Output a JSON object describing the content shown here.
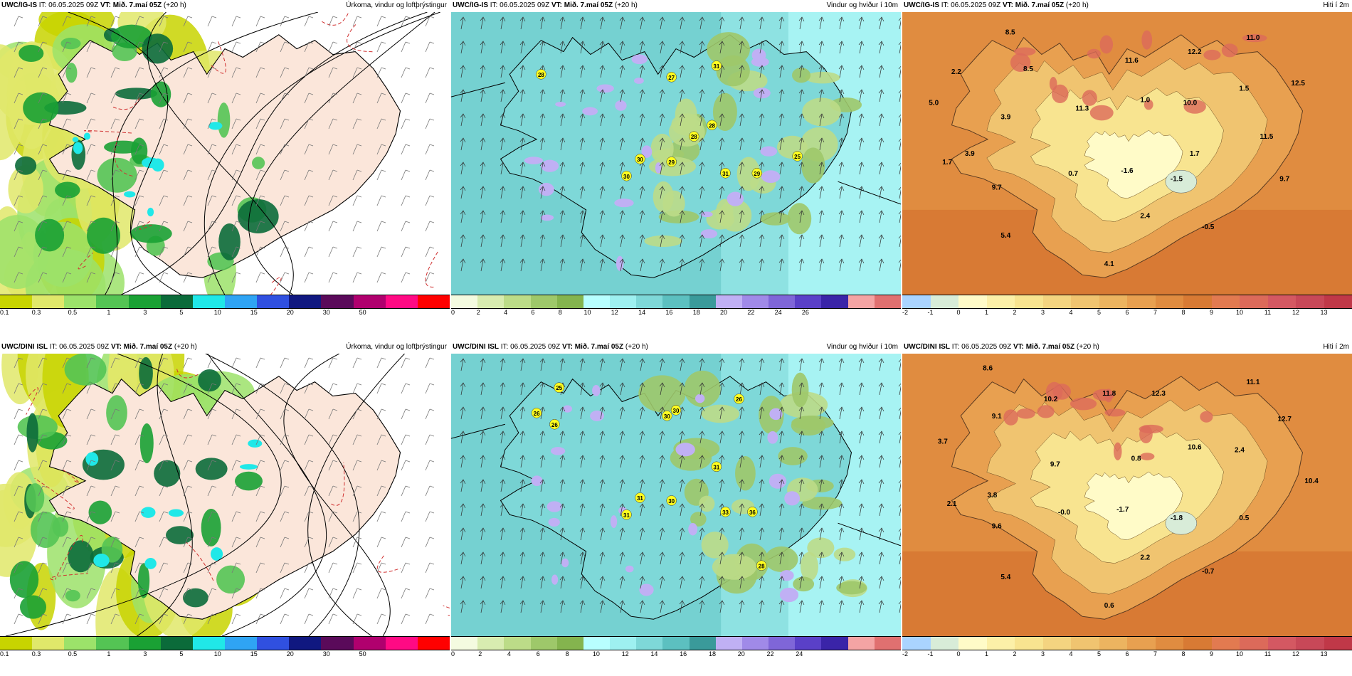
{
  "panels": [
    {
      "id": "r1c1",
      "model": "UWC/IG-IS",
      "it": "IT: 06.05.2025 09Z",
      "vt_label": "VT:",
      "vt": "Mið. 7.maí 05Z",
      "lead": "(+20 h)",
      "variable": "Úrkoma, vindur og loftþrýstingur",
      "kind": "precip",
      "scale_colors": [
        "#c8d400",
        "#e0e86a",
        "#9ce26a",
        "#54c454",
        "#1aa134",
        "#0b6b3a",
        "#20e8e8",
        "#2fa4f4",
        "#3050e0",
        "#101880",
        "#5a0a5a",
        "#b0006e",
        "#ff0a84",
        "#ff0000"
      ],
      "scale_labels": [
        "0.1",
        "0.3",
        "0.5",
        "1",
        "3",
        "5",
        "10",
        "15",
        "20",
        "30",
        "50"
      ],
      "values": []
    },
    {
      "id": "r1c2",
      "model": "UWC/IG-IS",
      "it": "IT: 06.05.2025 09Z",
      "vt_label": "VT:",
      "vt": "Mið. 7.maí 05Z",
      "lead": "(+20 h)",
      "variable": "Vindur og hviður í 10m",
      "kind": "wind",
      "scale_colors": [
        "#f4fbe0",
        "#d8ecb0",
        "#bcdc88",
        "#9ec86a",
        "#84b44e",
        "#b8ffff",
        "#9ef0f0",
        "#7ed8d8",
        "#5cc0c0",
        "#3a9a9a",
        "#c0b0f4",
        "#a08ae8",
        "#7f66d8",
        "#5a40c8",
        "#3a24a8",
        "#f4a4a4",
        "#e07070"
      ],
      "scale_labels": [
        "0",
        "2",
        "4",
        "6",
        "8",
        "10",
        "12",
        "14",
        "16",
        "18",
        "20",
        "22",
        "24",
        "26"
      ],
      "values": [
        "28",
        "27",
        "31",
        "28",
        "28",
        "30",
        "29",
        "31",
        "29",
        "25",
        "30"
      ]
    },
    {
      "id": "r1c3",
      "model": "UWC/IG-IS",
      "it": "IT: 06.05.2025 09Z",
      "vt_label": "VT:",
      "vt": "Mið. 7.maí 05Z",
      "lead": "(+20 h)",
      "variable": "Hiti í 2m",
      "kind": "temp",
      "scale_colors": [
        "#aad4ff",
        "#d8ecd8",
        "#fffbc8",
        "#fcf0a8",
        "#f8e490",
        "#f4d480",
        "#f0c470",
        "#ecb460",
        "#e8a050",
        "#e08c40",
        "#d87a34",
        "#e27a50",
        "#dc6a5a",
        "#d45862",
        "#c84858",
        "#c03848"
      ],
      "scale_labels": [
        "-2",
        "-1",
        "0",
        "1",
        "2",
        "3",
        "4",
        "5",
        "6",
        "7",
        "8",
        "9",
        "10",
        "11",
        "12",
        "13"
      ],
      "values": [
        "8.5",
        "11.0",
        "2.2",
        "8.5",
        "12.2",
        "11.6",
        "5.0",
        "1.0",
        "10.0",
        "1.5",
        "12.5",
        "3.9",
        "11.3",
        "1.7",
        "11.5",
        "1.7",
        "3.9",
        "0.7",
        "-1.6",
        "9.7",
        "-1.5",
        "9.7",
        "2.4",
        "-0.5",
        "5.4",
        "4.1"
      ]
    },
    {
      "id": "r2c1",
      "model": "UWC/DINI ISL",
      "it": "IT: 06.05.2025 09Z",
      "vt_label": "VT:",
      "vt": "Mið. 7.maí 05Z",
      "lead": "(+20 h)",
      "variable": "Úrkoma, vindur og loftþrýstingur",
      "kind": "precip",
      "scale_colors": [
        "#c8d400",
        "#e0e86a",
        "#9ce26a",
        "#54c454",
        "#1aa134",
        "#0b6b3a",
        "#20e8e8",
        "#2fa4f4",
        "#3050e0",
        "#101880",
        "#5a0a5a",
        "#b0006e",
        "#ff0a84",
        "#ff0000"
      ],
      "scale_labels": [
        "0.1",
        "0.3",
        "0.5",
        "1",
        "3",
        "5",
        "10",
        "15",
        "20",
        "30",
        "50"
      ],
      "values": []
    },
    {
      "id": "r2c2",
      "model": "UWC/DINI ISL",
      "it": "IT: 06.05.2025 09Z",
      "vt_label": "VT:",
      "vt": "Mið. 7.maí 05Z",
      "lead": "(+20 h)",
      "variable": "Vindur og hviður í 10m",
      "kind": "wind",
      "scale_colors": [
        "#f4fbe0",
        "#d8ecb0",
        "#bcdc88",
        "#9ec86a",
        "#84b44e",
        "#b8ffff",
        "#9ef0f0",
        "#7ed8d8",
        "#5cc0c0",
        "#3a9a9a",
        "#c0b0f4",
        "#a08ae8",
        "#7f66d8",
        "#5a40c8",
        "#3a24a8",
        "#f4a4a4",
        "#e07070"
      ],
      "scale_labels": [
        "0",
        "2",
        "4",
        "6",
        "8",
        "10",
        "12",
        "14",
        "16",
        "18",
        "20",
        "22",
        "24"
      ],
      "values": [
        "25",
        "26",
        "26",
        "30",
        "30",
        "26",
        "31",
        "31",
        "30",
        "33",
        "36",
        "28",
        "31"
      ]
    },
    {
      "id": "r2c3",
      "model": "UWC/DINI ISL",
      "it": "IT: 06.05.2025 09Z",
      "vt_label": "VT:",
      "vt": "Mið. 7.maí 05Z",
      "lead": "(+20 h)",
      "variable": "Hiti í 2m",
      "kind": "temp",
      "scale_colors": [
        "#aad4ff",
        "#d8ecd8",
        "#fffbc8",
        "#fcf0a8",
        "#f8e490",
        "#f4d480",
        "#f0c470",
        "#ecb460",
        "#e8a050",
        "#e08c40",
        "#d87a34",
        "#e27a50",
        "#dc6a5a",
        "#d45862",
        "#c84858",
        "#c03848"
      ],
      "scale_labels": [
        "-2",
        "-1",
        "0",
        "1",
        "2",
        "3",
        "4",
        "5",
        "6",
        "7",
        "8",
        "9",
        "10",
        "11",
        "12",
        "13"
      ],
      "values": [
        "8.6",
        "11.1",
        "10.2",
        "11.8",
        "12.3",
        "9.1",
        "12.7",
        "3.7",
        "10.6",
        "2.4",
        "9.7",
        "0.8",
        "10.4",
        "3.8",
        "2.1",
        "-0.0",
        "-1.7",
        "-1.8",
        "0.5",
        "9.6",
        "2.2",
        "-0.7",
        "5.4",
        "0.6"
      ]
    }
  ]
}
